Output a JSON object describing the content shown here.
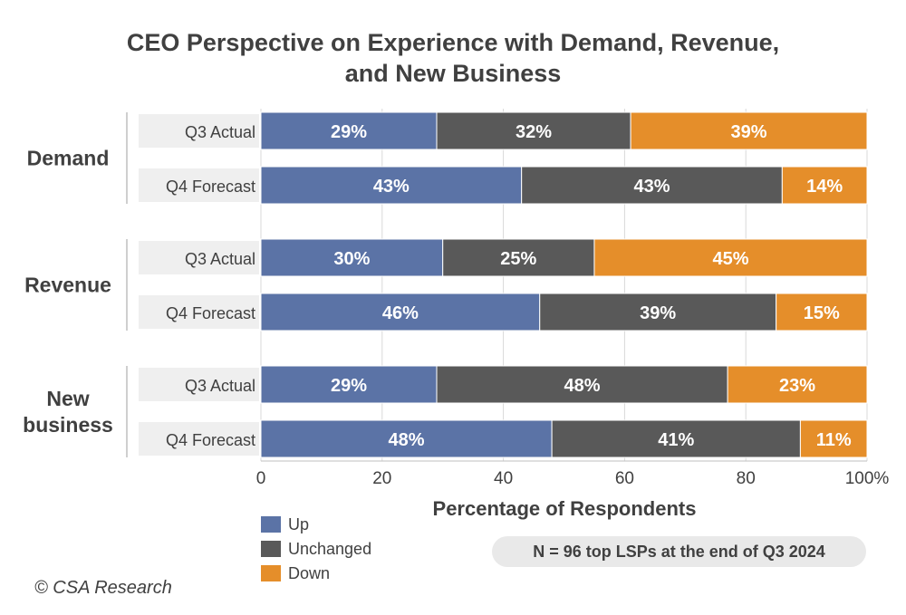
{
  "chart_data": {
    "type": "bar",
    "orientation": "horizontal",
    "stacked": true,
    "title": "CEO Perspective on Experience with Demand, Revenue, and New Business",
    "title_lines": [
      "CEO Perspective on Experience with Demand, Revenue,",
      "and New Business"
    ],
    "xlabel": "Percentage of Respondents",
    "ylabel": "",
    "xlim": [
      0,
      100
    ],
    "x_ticks": [
      "0",
      "20",
      "40",
      "60",
      "80",
      "100%"
    ],
    "grid": true,
    "legend_position": "bottom-left",
    "series": [
      {
        "name": "Up",
        "color": "#5b73a6"
      },
      {
        "name": "Unchanged",
        "color": "#595959"
      },
      {
        "name": "Down",
        "color": "#e58e2a"
      }
    ],
    "groups": [
      {
        "label": "Demand",
        "label_lines": [
          "Demand"
        ],
        "rows": [
          {
            "label": "Q3 Actual",
            "values": [
              29,
              32,
              39
            ],
            "value_labels": [
              "29%",
              "32%",
              "39%"
            ]
          },
          {
            "label": "Q4 Forecast",
            "values": [
              43,
              43,
              14
            ],
            "value_labels": [
              "43%",
              "43%",
              "14%"
            ]
          }
        ]
      },
      {
        "label": "Revenue",
        "label_lines": [
          "Revenue"
        ],
        "rows": [
          {
            "label": "Q3 Actual",
            "values": [
              30,
              25,
              45
            ],
            "value_labels": [
              "30%",
              "25%",
              "45%"
            ]
          },
          {
            "label": "Q4 Forecast",
            "values": [
              46,
              39,
              15
            ],
            "value_labels": [
              "46%",
              "39%",
              "15%"
            ]
          }
        ]
      },
      {
        "label": "New business",
        "label_lines": [
          "New",
          "business"
        ],
        "rows": [
          {
            "label": "Q3 Actual",
            "values": [
              29,
              48,
              23
            ],
            "value_labels": [
              "29%",
              "48%",
              "23%"
            ]
          },
          {
            "label": "Q4 Forecast",
            "values": [
              48,
              41,
              11
            ],
            "value_labels": [
              "48%",
              "41%",
              "11%"
            ]
          }
        ]
      }
    ],
    "note": "N = 96 top LSPs at the end of Q3 2024",
    "credit": "© CSA Research"
  }
}
